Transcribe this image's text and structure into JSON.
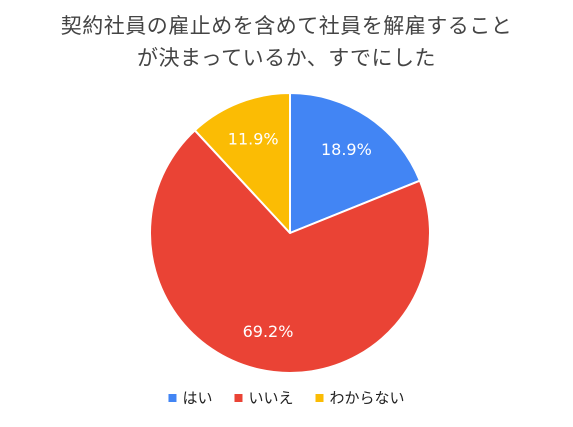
{
  "chart_data": {
    "type": "pie",
    "title_lines": [
      "契約社員の雇止めを含めて社員を解雇すること",
      "が決まっているか、すでにした"
    ],
    "categories": [
      "はい",
      "いいえ",
      "わからない"
    ],
    "values": [
      18.9,
      69.2,
      11.9
    ],
    "value_labels": [
      "18.9%",
      "69.2%",
      "11.9%"
    ],
    "colors": [
      "#4285F4",
      "#EA4335",
      "#FBBC04"
    ],
    "start_angle": "12 o'clock",
    "direction": "clockwise",
    "legend_placement": "bottom-center"
  }
}
